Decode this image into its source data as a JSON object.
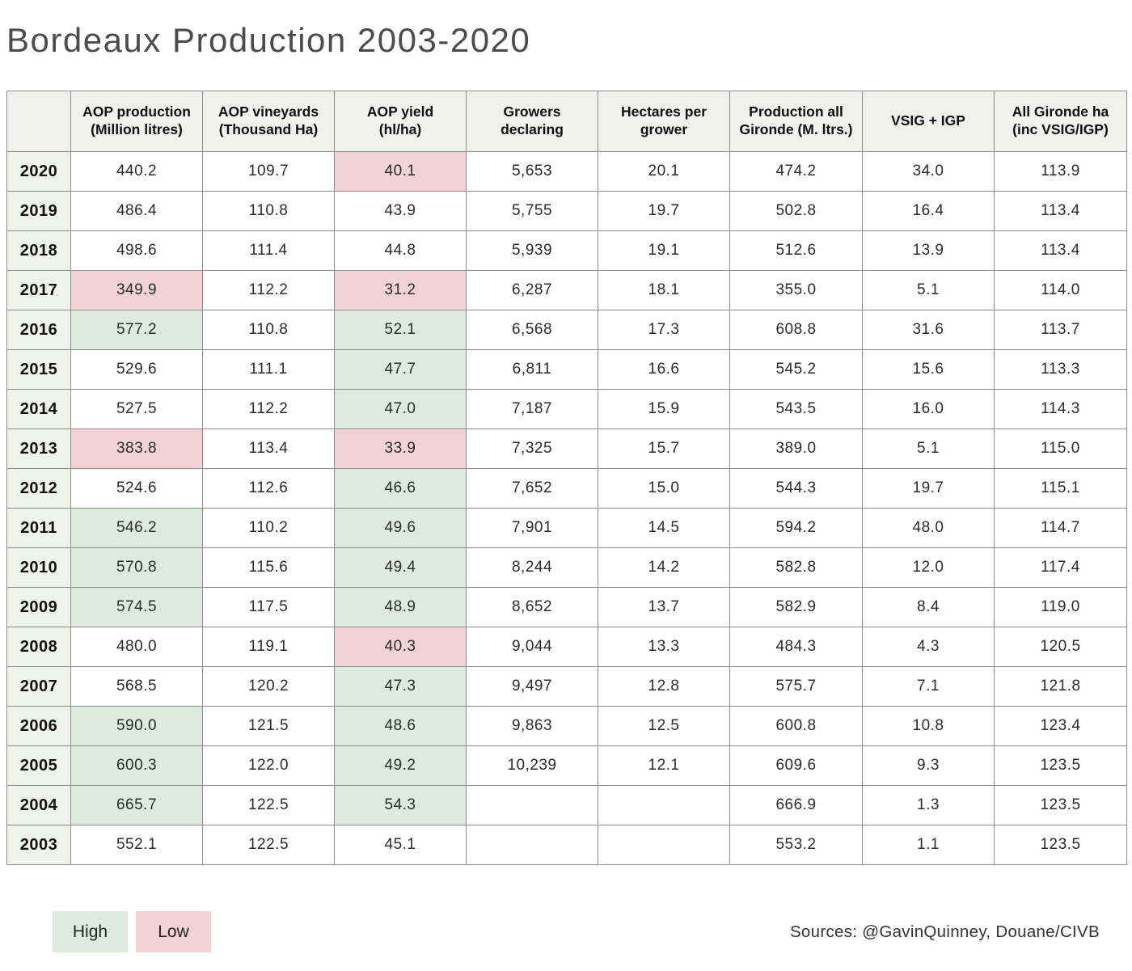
{
  "title": "Bordeaux Production 2003-2020",
  "colors": {
    "high": "#dcebdd",
    "low": "#f1d2d7",
    "header_bg": "#f0f0ee",
    "year_col_bg": "#f0f2ee",
    "border": "#8c8c8c"
  },
  "legend": {
    "high_label": "High",
    "low_label": "Low"
  },
  "sources": "Sources: @GavinQuinney, Douane/CIVB",
  "chart_data": {
    "type": "table",
    "title": "Bordeaux Production 2003-2020",
    "columns": [
      "AOP production\n(Million litres)",
      "AOP vineyards\n(Thousand Ha)",
      "AOP yield\n(hl/ha)",
      "Growers\ndeclaring",
      "Hectares per\ngrower",
      "Production all\nGironde (M. ltrs.)",
      "VSIG + IGP",
      "All Gironde ha\n(inc VSIG/IGP)"
    ],
    "highlight_legend": {
      "high": "High",
      "low": "Low"
    },
    "rows": [
      {
        "year": "2020",
        "cells": [
          {
            "v": "440.2"
          },
          {
            "v": "109.7"
          },
          {
            "v": "40.1",
            "h": "low"
          },
          {
            "v": "5,653"
          },
          {
            "v": "20.1"
          },
          {
            "v": "474.2"
          },
          {
            "v": "34.0"
          },
          {
            "v": "113.9"
          }
        ]
      },
      {
        "year": "2019",
        "cells": [
          {
            "v": "486.4"
          },
          {
            "v": "110.8"
          },
          {
            "v": "43.9"
          },
          {
            "v": "5,755"
          },
          {
            "v": "19.7"
          },
          {
            "v": "502.8"
          },
          {
            "v": "16.4"
          },
          {
            "v": "113.4"
          }
        ]
      },
      {
        "year": "2018",
        "cells": [
          {
            "v": "498.6"
          },
          {
            "v": "111.4"
          },
          {
            "v": "44.8"
          },
          {
            "v": "5,939"
          },
          {
            "v": "19.1"
          },
          {
            "v": "512.6"
          },
          {
            "v": "13.9"
          },
          {
            "v": "113.4"
          }
        ]
      },
      {
        "year": "2017",
        "cells": [
          {
            "v": "349.9",
            "h": "low"
          },
          {
            "v": "112.2"
          },
          {
            "v": "31.2",
            "h": "low"
          },
          {
            "v": "6,287"
          },
          {
            "v": "18.1"
          },
          {
            "v": "355.0"
          },
          {
            "v": "5.1"
          },
          {
            "v": "114.0"
          }
        ]
      },
      {
        "year": "2016",
        "cells": [
          {
            "v": "577.2",
            "h": "high"
          },
          {
            "v": "110.8"
          },
          {
            "v": "52.1",
            "h": "high"
          },
          {
            "v": "6,568"
          },
          {
            "v": "17.3"
          },
          {
            "v": "608.8"
          },
          {
            "v": "31.6"
          },
          {
            "v": "113.7"
          }
        ]
      },
      {
        "year": "2015",
        "cells": [
          {
            "v": "529.6"
          },
          {
            "v": "111.1"
          },
          {
            "v": "47.7",
            "h": "high"
          },
          {
            "v": "6,811"
          },
          {
            "v": "16.6"
          },
          {
            "v": "545.2"
          },
          {
            "v": "15.6"
          },
          {
            "v": "113.3"
          }
        ]
      },
      {
        "year": "2014",
        "cells": [
          {
            "v": "527.5"
          },
          {
            "v": "112.2"
          },
          {
            "v": "47.0",
            "h": "high"
          },
          {
            "v": "7,187"
          },
          {
            "v": "15.9"
          },
          {
            "v": "543.5"
          },
          {
            "v": "16.0"
          },
          {
            "v": "114.3"
          }
        ]
      },
      {
        "year": "2013",
        "cells": [
          {
            "v": "383.8",
            "h": "low"
          },
          {
            "v": "113.4"
          },
          {
            "v": "33.9",
            "h": "low"
          },
          {
            "v": "7,325"
          },
          {
            "v": "15.7"
          },
          {
            "v": "389.0"
          },
          {
            "v": "5.1"
          },
          {
            "v": "115.0"
          }
        ]
      },
      {
        "year": "2012",
        "cells": [
          {
            "v": "524.6"
          },
          {
            "v": "112.6"
          },
          {
            "v": "46.6",
            "h": "high"
          },
          {
            "v": "7,652"
          },
          {
            "v": "15.0"
          },
          {
            "v": "544.3"
          },
          {
            "v": "19.7"
          },
          {
            "v": "115.1"
          }
        ]
      },
      {
        "year": "2011",
        "cells": [
          {
            "v": "546.2",
            "h": "high"
          },
          {
            "v": "110.2"
          },
          {
            "v": "49.6",
            "h": "high"
          },
          {
            "v": "7,901"
          },
          {
            "v": "14.5"
          },
          {
            "v": "594.2"
          },
          {
            "v": "48.0"
          },
          {
            "v": "114.7"
          }
        ]
      },
      {
        "year": "2010",
        "cells": [
          {
            "v": "570.8",
            "h": "high"
          },
          {
            "v": "115.6"
          },
          {
            "v": "49.4",
            "h": "high"
          },
          {
            "v": "8,244"
          },
          {
            "v": "14.2"
          },
          {
            "v": "582.8"
          },
          {
            "v": "12.0"
          },
          {
            "v": "117.4"
          }
        ]
      },
      {
        "year": "2009",
        "cells": [
          {
            "v": "574.5",
            "h": "high"
          },
          {
            "v": "117.5"
          },
          {
            "v": "48.9",
            "h": "high"
          },
          {
            "v": "8,652"
          },
          {
            "v": "13.7"
          },
          {
            "v": "582.9"
          },
          {
            "v": "8.4"
          },
          {
            "v": "119.0"
          }
        ]
      },
      {
        "year": "2008",
        "cells": [
          {
            "v": "480.0"
          },
          {
            "v": "119.1"
          },
          {
            "v": "40.3",
            "h": "low"
          },
          {
            "v": "9,044"
          },
          {
            "v": "13.3"
          },
          {
            "v": "484.3"
          },
          {
            "v": "4.3"
          },
          {
            "v": "120.5"
          }
        ]
      },
      {
        "year": "2007",
        "cells": [
          {
            "v": "568.5"
          },
          {
            "v": "120.2"
          },
          {
            "v": "47.3",
            "h": "high"
          },
          {
            "v": "9,497"
          },
          {
            "v": "12.8"
          },
          {
            "v": "575.7"
          },
          {
            "v": "7.1"
          },
          {
            "v": "121.8"
          }
        ]
      },
      {
        "year": "2006",
        "cells": [
          {
            "v": "590.0",
            "h": "high"
          },
          {
            "v": "121.5"
          },
          {
            "v": "48.6",
            "h": "high"
          },
          {
            "v": "9,863"
          },
          {
            "v": "12.5"
          },
          {
            "v": "600.8"
          },
          {
            "v": "10.8"
          },
          {
            "v": "123.4"
          }
        ]
      },
      {
        "year": "2005",
        "cells": [
          {
            "v": "600.3",
            "h": "high"
          },
          {
            "v": "122.0"
          },
          {
            "v": "49.2",
            "h": "high"
          },
          {
            "v": "10,239"
          },
          {
            "v": "12.1"
          },
          {
            "v": "609.6"
          },
          {
            "v": "9.3"
          },
          {
            "v": "123.5"
          }
        ]
      },
      {
        "year": "2004",
        "cells": [
          {
            "v": "665.7",
            "h": "high"
          },
          {
            "v": "122.5"
          },
          {
            "v": "54.3",
            "h": "high"
          },
          {
            "v": ""
          },
          {
            "v": ""
          },
          {
            "v": "666.9"
          },
          {
            "v": "1.3"
          },
          {
            "v": "123.5"
          }
        ]
      },
      {
        "year": "2003",
        "cells": [
          {
            "v": "552.1"
          },
          {
            "v": "122.5"
          },
          {
            "v": "45.1"
          },
          {
            "v": ""
          },
          {
            "v": ""
          },
          {
            "v": "553.2"
          },
          {
            "v": "1.1"
          },
          {
            "v": "123.5"
          }
        ]
      }
    ]
  }
}
